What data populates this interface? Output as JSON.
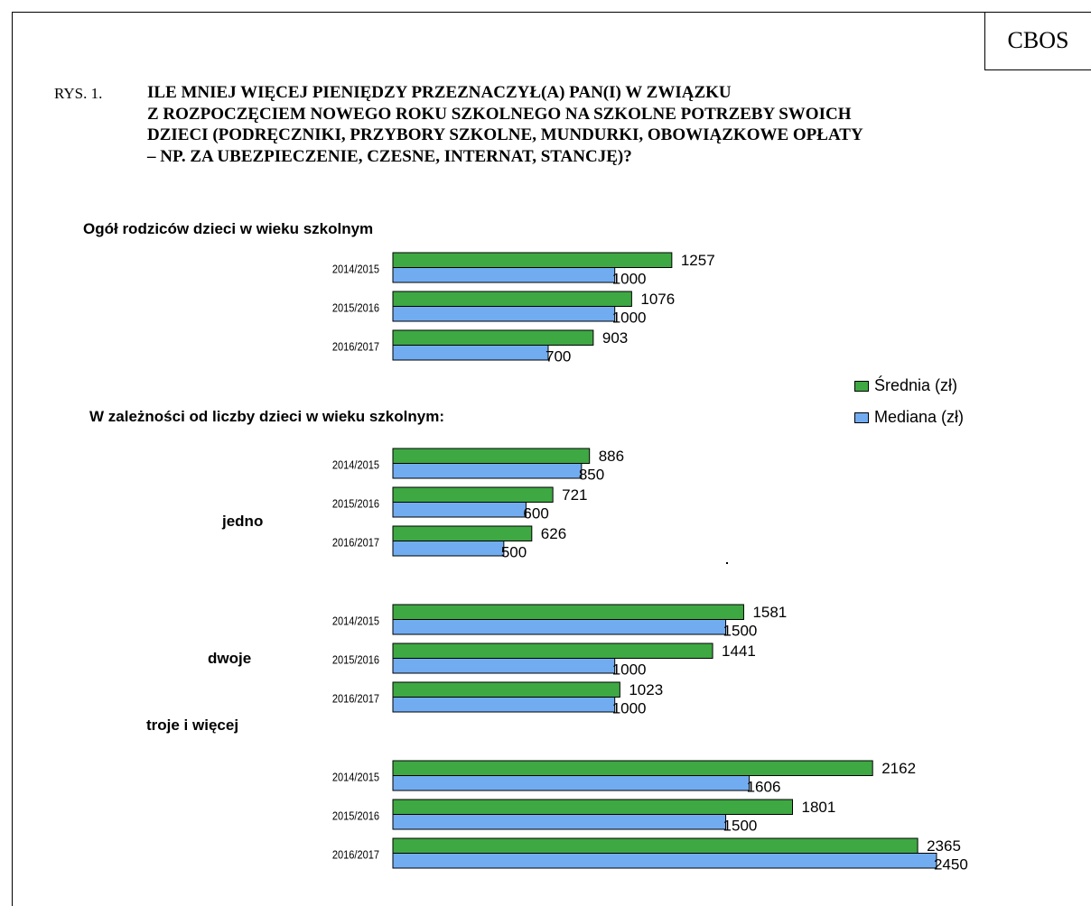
{
  "header": {
    "brand": "CBOS",
    "figure_label": "RYS. 1.",
    "question_lines": [
      "ILE MNIEJ WIĘCEJ PIENIĘDZY PRZEZNACZYŁ(A) PAN(I) W ZWIĄZKU",
      "Z ROZPOCZĘCIEM NOWEGO ROKU SZKOLNEGO NA SZKOLNE POTRZEBY SWOICH",
      "DZIECI (PODRĘCZNIKI, PRZYBORY SZKOLNE, MUNDURKI, OBOWIĄZKOWE OPŁATY",
      "– NP. ZA UBEZPIECZENIE, CZESNE, INTERNAT, STANCJĘ)?"
    ]
  },
  "section_headings": {
    "overall": "Ogół rodziców dzieci  w wieku szkolnym",
    "by_children": "W zależności od liczby dzieci w wieku szkolnym:"
  },
  "colors": {
    "srednia": "#3ea843",
    "mediana": "#72acf0",
    "outline": "#000000"
  },
  "chart_data": {
    "type": "bar",
    "orientation": "horizontal",
    "legend": [
      "Średnia (zł)",
      "Mediana (zł)"
    ],
    "legend_position": "right",
    "categories": [
      "2014/2015",
      "2015/2016",
      "2016/2017"
    ],
    "groups": [
      {
        "label": "Ogół rodziców dzieci  w wieku szkolnym",
        "series": [
          {
            "name": "Średnia (zł)",
            "values": [
              1257,
              1076,
              903
            ]
          },
          {
            "name": "Mediana (zł)",
            "values": [
              1000,
              1000,
              700
            ]
          }
        ]
      },
      {
        "label": "jedno",
        "series": [
          {
            "name": "Średnia (zł)",
            "values": [
              886,
              721,
              626
            ]
          },
          {
            "name": "Mediana (zł)",
            "values": [
              850,
              600,
              500
            ]
          }
        ]
      },
      {
        "label": "dwoje",
        "series": [
          {
            "name": "Średnia (zł)",
            "values": [
              1581,
              1441,
              1023
            ]
          },
          {
            "name": "Mediana (zł)",
            "values": [
              1500,
              1000,
              1000
            ]
          }
        ]
      },
      {
        "label": "troje i więcej",
        "series": [
          {
            "name": "Średnia (zł)",
            "values": [
              2162,
              1801,
              2365
            ]
          },
          {
            "name": "Mediana (zł)",
            "values": [
              1606,
              1500,
              2450
            ]
          }
        ]
      }
    ]
  }
}
